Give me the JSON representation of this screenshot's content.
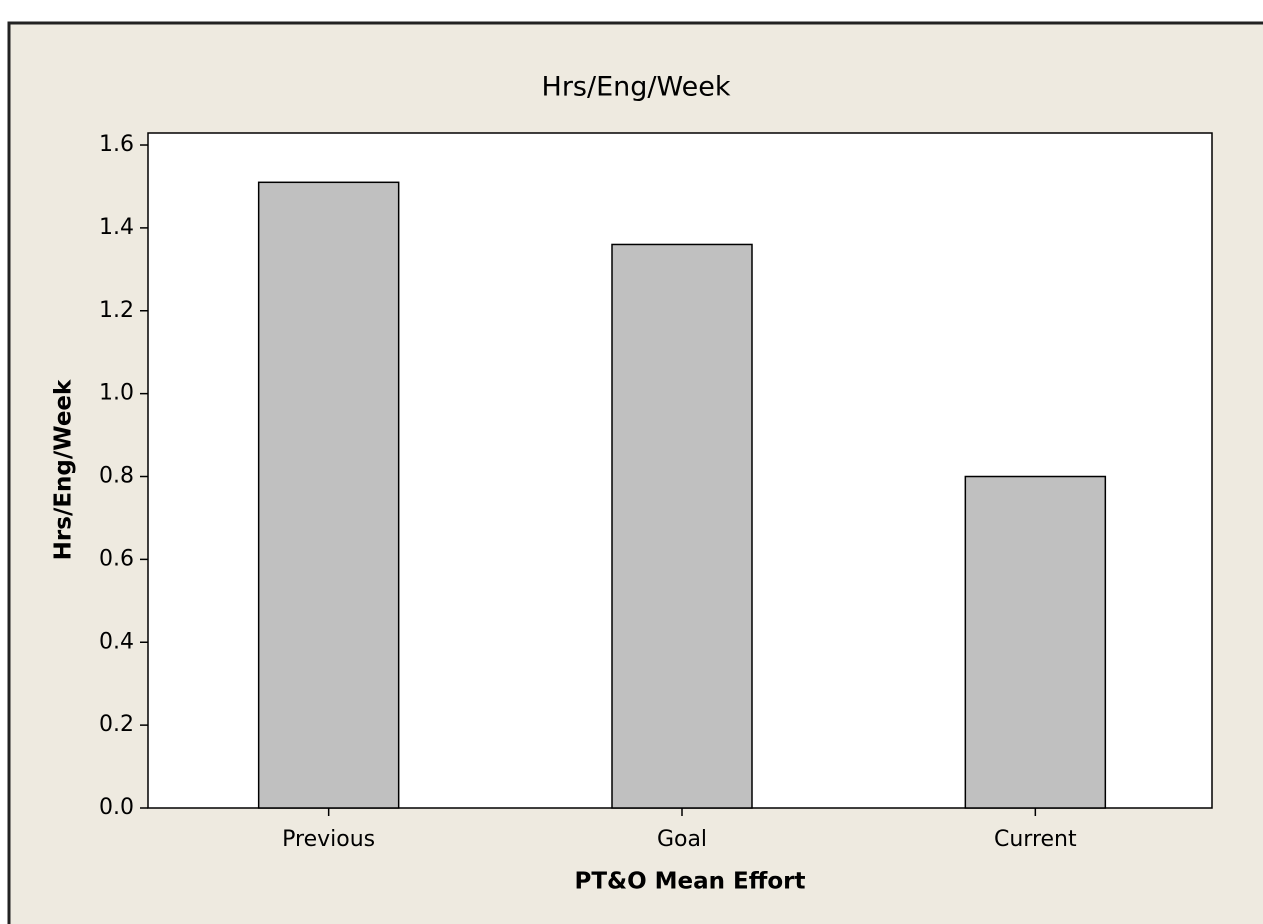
{
  "chart_data": {
    "type": "bar",
    "title": "Hrs/Eng/Week",
    "x_label": "PT&O Mean Effort",
    "y_label": "Hrs/Eng/Week",
    "categories": [
      "Previous",
      "Goal",
      "Current"
    ],
    "values": [
      1.51,
      1.36,
      0.8
    ],
    "color": "#c0c0c0",
    "ylim": [
      0,
      1.629
    ],
    "yticks": [
      {
        "value": 0,
        "label": "0.0"
      },
      0.2,
      0.4,
      0.6,
      0.8,
      {
        "value": 1,
        "label": "1.0"
      },
      1.2,
      1.4,
      1.6
    ]
  }
}
